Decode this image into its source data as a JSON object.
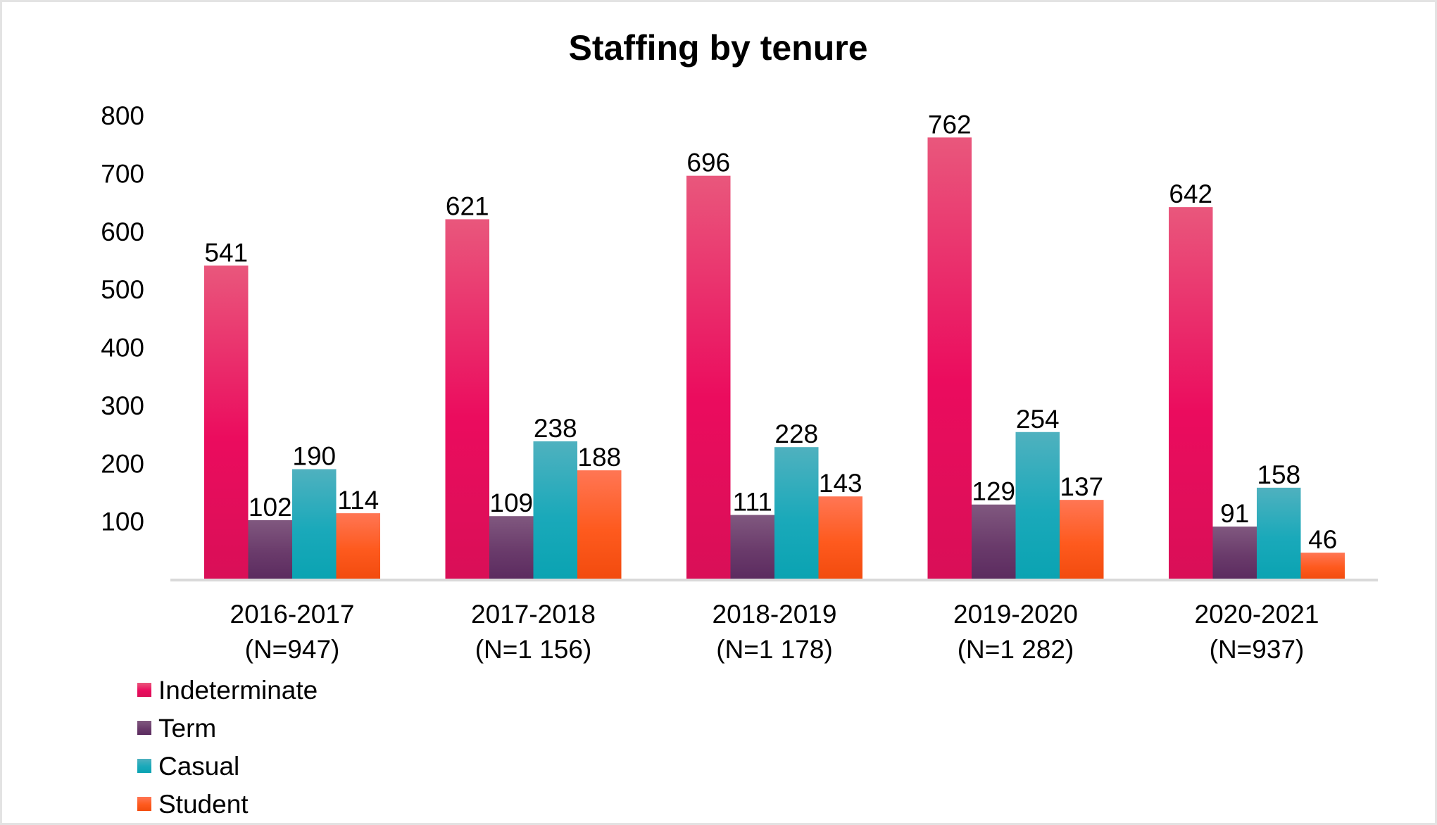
{
  "chart_data": {
    "type": "bar",
    "title": "Staffing by tenure",
    "xlabel": "",
    "ylabel": "",
    "ylim": [
      0,
      800
    ],
    "yticks": [
      100,
      200,
      300,
      400,
      500,
      600,
      700,
      800
    ],
    "grid": false,
    "legend_position": "bottom-left",
    "categories": [
      [
        "2016-2017",
        "(N=947)"
      ],
      [
        "2017-2018",
        "(N=1 156)"
      ],
      [
        "2018-2019",
        "(N=1 178)"
      ],
      [
        "2019-2020",
        "(N=1 282)"
      ],
      [
        "2020-2021",
        "(N=937)"
      ]
    ],
    "series": [
      {
        "name": "Indeterminate",
        "values": [
          541,
          621,
          696,
          762,
          642
        ],
        "color_top": "#e9577c",
        "color_mid": "#eb0c5e",
        "color_bottom": "#d90f57"
      },
      {
        "name": "Term",
        "values": [
          102,
          109,
          111,
          129,
          91
        ],
        "color_top": "#80587f",
        "color_mid": "#6a3b6b",
        "color_bottom": "#5b2b5f"
      },
      {
        "name": "Casual",
        "values": [
          190,
          238,
          228,
          254,
          158
        ],
        "color_top": "#4fb1bf",
        "color_mid": "#1aa9ba",
        "color_bottom": "#0aa3b2"
      },
      {
        "name": "Student",
        "values": [
          114,
          188,
          143,
          137,
          46
        ],
        "color_top": "#ff7654",
        "color_mid": "#fe5a1e",
        "color_bottom": "#f24b0e"
      }
    ]
  }
}
